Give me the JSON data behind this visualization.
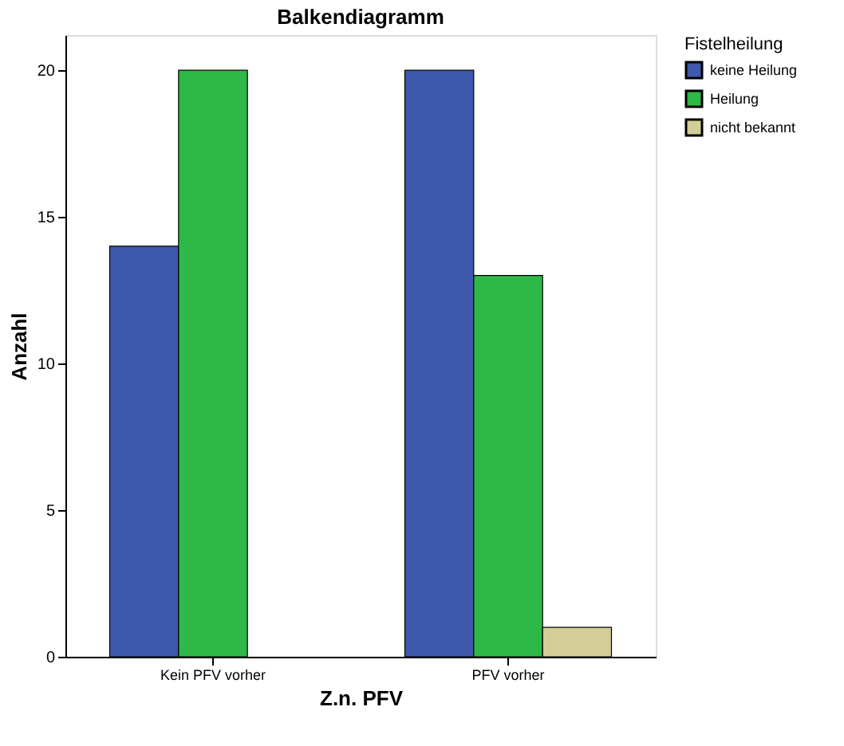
{
  "chart_data": {
    "type": "bar",
    "title": "Balkendiagramm",
    "xlabel": "Z.n. PFV",
    "ylabel": "Anzahl",
    "legend_title": "Fistelheilung",
    "categories": [
      "Kein PFV vorher",
      "PFV vorher"
    ],
    "series": [
      {
        "name": "keine Heilung",
        "color": "#3e58ac",
        "values": [
          14,
          20
        ]
      },
      {
        "name": "Heilung",
        "color": "#2eb848",
        "values": [
          20,
          13
        ]
      },
      {
        "name": "nicht bekannt",
        "color": "#d3ce97",
        "values": [
          null,
          1
        ]
      }
    ],
    "ylim": [
      0,
      21.2
    ],
    "yticks": [
      0,
      5,
      10,
      15,
      20
    ],
    "grid": false,
    "legend": "top right"
  }
}
